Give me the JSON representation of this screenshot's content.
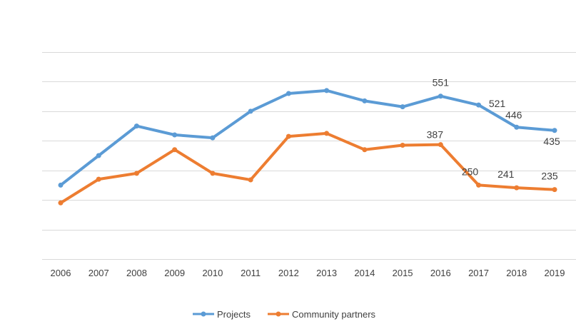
{
  "chart_data": {
    "type": "line",
    "title": "",
    "xlabel": "",
    "ylabel": "",
    "x": [
      "2006",
      "2007",
      "2008",
      "2009",
      "2010",
      "2011",
      "2012",
      "2013",
      "2014",
      "2015",
      "2016",
      "2017",
      "2018",
      "2019"
    ],
    "grid": true,
    "legend_position": "bottom",
    "series": [
      {
        "name": "Projects",
        "color": "#5b9bd5",
        "values": [
          250,
          350,
          450,
          420,
          410,
          500,
          560,
          570,
          535,
          515,
          551,
          521,
          446,
          435
        ],
        "labels": [
          "",
          "",
          "",
          "",
          "",
          "",
          "",
          "",
          "",
          "",
          "551",
          "521",
          "446",
          "435"
        ]
      },
      {
        "name": "Community partners",
        "color": "#ed7d31",
        "values": [
          190,
          270,
          290,
          370,
          290,
          268,
          415,
          425,
          370,
          385,
          387,
          250,
          241,
          235
        ],
        "labels": [
          "",
          "",
          "",
          "",
          "",
          "",
          "",
          "",
          "",
          "",
          "387",
          "250",
          "241",
          "235"
        ]
      }
    ]
  }
}
